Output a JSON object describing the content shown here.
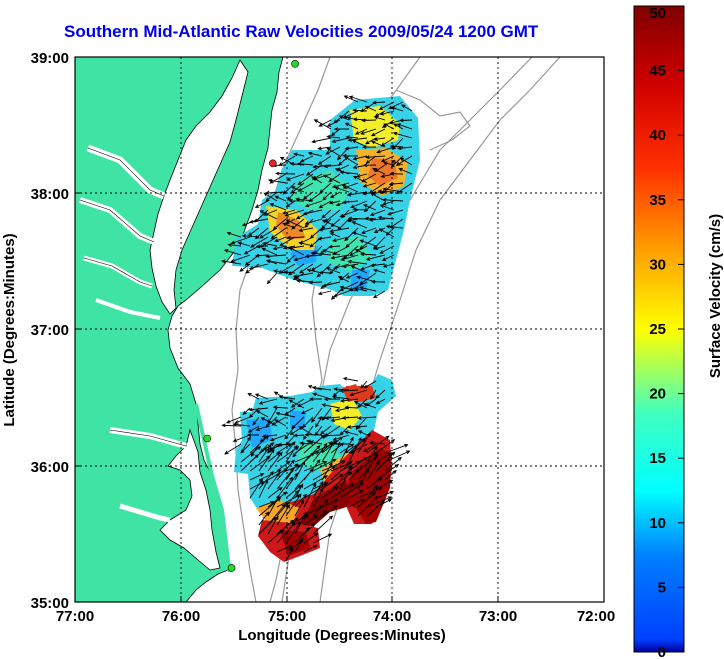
{
  "title": "Southern Mid-Atlantic Raw Velocities 2009/05/24 1200 GMT",
  "map": {
    "x_label": "Longitude (Degrees:Minutes)",
    "y_label": "Latitude (Degrees:Minutes)",
    "x_ticks": [
      "77:00",
      "76:00",
      "75:00",
      "74:00",
      "73:00",
      "72:00"
    ],
    "y_ticks": [
      "39:00",
      "38:00",
      "37:00",
      "36:00",
      "35:00"
    ],
    "lon_range": [
      -77,
      -72
    ],
    "lat_range": [
      35,
      39
    ],
    "land_color": "#3fe3a4",
    "sea_color": "#ffffff",
    "grid": "dotted",
    "stations": [
      {
        "lon": -74.92,
        "lat": 38.95,
        "color": "#22dd22"
      },
      {
        "lon": -75.13,
        "lat": 38.22,
        "color": "#ee2222"
      },
      {
        "lon": -75.75,
        "lat": 36.2,
        "color": "#22dd22"
      },
      {
        "lon": -75.52,
        "lat": 35.25,
        "color": "#22dd22"
      }
    ]
  },
  "colorbar": {
    "label": "Surface Velocity (cm/s)",
    "min": 0,
    "max": 50,
    "ticks": [
      "0",
      "5",
      "10",
      "15",
      "20",
      "25",
      "30",
      "35",
      "40",
      "45",
      "50"
    ],
    "colormap": "jet"
  }
}
